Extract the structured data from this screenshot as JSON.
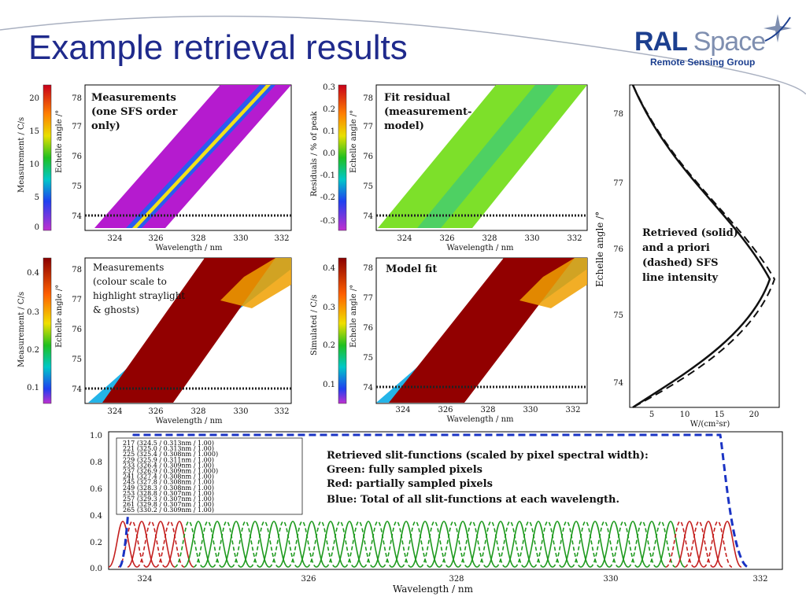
{
  "slide": {
    "title": "Example retrieval results",
    "logo_main_a": "RAL",
    "logo_main_b": "Space",
    "logo_sub": "Remote Sensing Group"
  },
  "panels": {
    "p1": {
      "note_lines": [
        "Measurements",
        "(one SFS order",
        "only)"
      ],
      "cbar_label": "Measurement / C/s",
      "cbar_ticks": [
        "20",
        "15",
        "10",
        "5",
        "0"
      ],
      "ylabel": "Echelle angle /°",
      "xlabel": "Wavelength / nm"
    },
    "p2": {
      "note_lines": [
        "Fit residual",
        "(measurement-",
        "model)"
      ],
      "cbar_label": "Residuals / % of peak",
      "cbar_ticks": [
        "0.3",
        "0.2",
        "0.1",
        "0.0",
        "-0.1",
        "-0.2",
        "-0.3"
      ],
      "ylabel": "Echelle angle /°",
      "xlabel": "Wavelength / nm"
    },
    "p3": {
      "note_lines": [
        "Measurements",
        "(colour scale to",
        "highlight straylight",
        "& ghosts)"
      ],
      "cbar_label": "Measurement / C/s",
      "cbar_ticks": [
        "0.4",
        "0.3",
        "0.2",
        "0.1"
      ],
      "ylabel": "Echelle angle /°",
      "xlabel": "Wavelength / nm"
    },
    "p4": {
      "note_lines": [
        "Model fit"
      ],
      "cbar_label": "Simulated / C/s",
      "cbar_ticks": [
        "0.4",
        "0.3",
        "0.2",
        "0.1"
      ],
      "ylabel": "Echelle angle /°",
      "xlabel": "Wavelength / nm"
    },
    "y_ticks": [
      "78",
      "77",
      "76",
      "75",
      "74"
    ],
    "x_ticks": [
      "324",
      "326",
      "328",
      "330",
      "332"
    ]
  },
  "right_plot": {
    "note_lines": [
      "Retrieved (solid)",
      "and a priori",
      "(dashed) SFS",
      "line intensity"
    ],
    "ylabel": "Echelle angle /°",
    "xlabel": "W/(cm²sr)",
    "y_ticks": [
      "78",
      "77",
      "76",
      "75",
      "74"
    ],
    "x_ticks": [
      "5",
      "10",
      "15",
      "20"
    ]
  },
  "bottom_plot": {
    "y_ticks": [
      "1.0",
      "0.8",
      "0.6",
      "0.4",
      "0.2",
      "0.0"
    ],
    "x_ticks": [
      "324",
      "326",
      "328",
      "330",
      "332"
    ],
    "xlabel": "Wavelength / nm",
    "legend_rows": [
      "217 (324.5 / 0.313nm / 1.00)",
      "221 (325.0 / 0.313nm / 1.00)",
      "225 (325.4 / 0.308nm / 1.000)",
      "229 (325.9 / 0.311nm / 1.00)",
      "233 (326.4 / 0.309nm / 1.00)",
      "237 (326.9 / 0.309nm / 1.000)",
      "241 (327.4 / 0.308nm / 1.00)",
      "245 (327.8 / 0.308nm / 1.00)",
      "249 (328.3 / 0.308nm / 1.00)",
      "253 (328.8 / 0.307nm / 1.00)",
      "257 (329.3 / 0.307nm / 1.00)",
      "261 (329.8 / 0.307nm / 1.00)",
      "265 (330.2 / 0.309nm / 1.00)"
    ],
    "annotation_lines": [
      "Retrieved slit-functions (scaled by pixel spectral width):",
      "Green: fully sampled pixels",
      "Red: partially sampled pixels",
      "Blue: Total of all slit-functions at each wavelength."
    ],
    "colors": {
      "green": "#1e9a1e",
      "red": "#c4201f",
      "blue": "#1a33c4"
    }
  }
}
